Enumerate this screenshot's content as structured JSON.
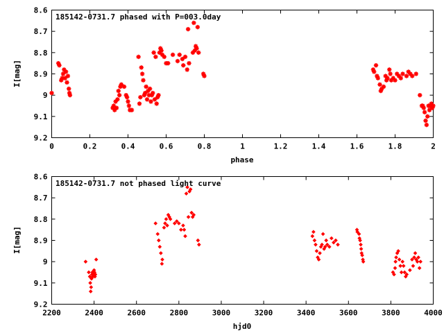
{
  "chart_data": [
    {
      "type": "scatter",
      "title": "185142-0731.7 phased with P=003.0day",
      "xlabel": "phase",
      "ylabel": "I[mag]",
      "xlim": [
        0,
        2
      ],
      "ylim": [
        9.2,
        8.6
      ],
      "y_inverted": true,
      "grid": false,
      "marker_color": "#ff0000",
      "marker": "star",
      "x_ticks": [
        "0",
        "0.2",
        "0.4",
        "0.6",
        "0.8",
        "1",
        "1.2",
        "1.4",
        "1.6",
        "1.8",
        "2"
      ],
      "x_tick_values": [
        0,
        0.2,
        0.4,
        0.6,
        0.8,
        1.0,
        1.2,
        1.4,
        1.6,
        1.8,
        2.0
      ],
      "y_ticks": [
        "8.6",
        "8.7",
        "8.8",
        "8.9",
        "9",
        "9.1",
        "9.2"
      ],
      "y_tick_values": [
        8.6,
        8.7,
        8.8,
        8.9,
        9.0,
        9.1,
        9.2
      ],
      "series": [
        {
          "points": [
            [
              0.0,
              8.99
            ],
            [
              0.035,
              8.85
            ],
            [
              0.04,
              8.86
            ],
            [
              0.05,
              8.93
            ],
            [
              0.055,
              8.92
            ],
            [
              0.06,
              8.9
            ],
            [
              0.065,
              8.88
            ],
            [
              0.07,
              8.92
            ],
            [
              0.075,
              8.89
            ],
            [
              0.08,
              8.94
            ],
            [
              0.085,
              8.91
            ],
            [
              0.09,
              8.97
            ],
            [
              0.093,
              8.99
            ],
            [
              0.096,
              9.0
            ],
            [
              0.32,
              9.06
            ],
            [
              0.325,
              9.05
            ],
            [
              0.33,
              9.07
            ],
            [
              0.335,
              9.03
            ],
            [
              0.34,
              9.06
            ],
            [
              0.345,
              9.02
            ],
            [
              0.35,
              8.98
            ],
            [
              0.355,
              9.0
            ],
            [
              0.36,
              8.96
            ],
            [
              0.365,
              8.95
            ],
            [
              0.38,
              8.96
            ],
            [
              0.39,
              9.0
            ],
            [
              0.395,
              9.01
            ],
            [
              0.4,
              9.03
            ],
            [
              0.405,
              9.05
            ],
            [
              0.41,
              9.07
            ],
            [
              0.42,
              9.07
            ],
            [
              0.455,
              8.82
            ],
            [
              0.46,
              9.04
            ],
            [
              0.465,
              9.01
            ],
            [
              0.47,
              8.87
            ],
            [
              0.475,
              8.9
            ],
            [
              0.48,
              8.93
            ],
            [
              0.485,
              9.0
            ],
            [
              0.49,
              8.99
            ],
            [
              0.495,
              8.96
            ],
            [
              0.5,
              9.02
            ],
            [
              0.505,
              8.98
            ],
            [
              0.51,
              9.0
            ],
            [
              0.515,
              8.97
            ],
            [
              0.52,
              9.03
            ],
            [
              0.525,
              9.0
            ],
            [
              0.53,
              8.99
            ],
            [
              0.535,
              8.8
            ],
            [
              0.54,
              9.02
            ],
            [
              0.545,
              8.82
            ],
            [
              0.55,
              9.04
            ],
            [
              0.555,
              9.01
            ],
            [
              0.56,
              9.0
            ],
            [
              0.565,
              8.8
            ],
            [
              0.57,
              8.78
            ],
            [
              0.575,
              8.79
            ],
            [
              0.58,
              8.81
            ],
            [
              0.59,
              8.82
            ],
            [
              0.6,
              8.85
            ],
            [
              0.61,
              8.85
            ],
            [
              0.635,
              8.81
            ],
            [
              0.66,
              8.84
            ],
            [
              0.67,
              8.81
            ],
            [
              0.685,
              8.83
            ],
            [
              0.69,
              8.86
            ],
            [
              0.7,
              8.82
            ],
            [
              0.71,
              8.88
            ],
            [
              0.715,
              8.69
            ],
            [
              0.72,
              8.85
            ],
            [
              0.74,
              8.8
            ],
            [
              0.745,
              8.66
            ],
            [
              0.75,
              8.79
            ],
            [
              0.755,
              8.77
            ],
            [
              0.76,
              8.78
            ],
            [
              0.765,
              8.68
            ],
            [
              0.77,
              8.8
            ],
            [
              0.795,
              8.9
            ],
            [
              0.8,
              8.91
            ],
            [
              1.685,
              8.88
            ],
            [
              1.69,
              8.89
            ],
            [
              1.7,
              8.86
            ],
            [
              1.705,
              8.91
            ],
            [
              1.71,
              8.92
            ],
            [
              1.72,
              8.95
            ],
            [
              1.725,
              8.98
            ],
            [
              1.73,
              8.97
            ],
            [
              1.74,
              8.96
            ],
            [
              1.75,
              8.91
            ],
            [
              1.755,
              8.93
            ],
            [
              1.76,
              8.92
            ],
            [
              1.77,
              8.88
            ],
            [
              1.775,
              8.9
            ],
            [
              1.78,
              8.93
            ],
            [
              1.79,
              8.92
            ],
            [
              1.8,
              8.93
            ],
            [
              1.81,
              8.9
            ],
            [
              1.82,
              8.91
            ],
            [
              1.83,
              8.92
            ],
            [
              1.84,
              8.9
            ],
            [
              1.86,
              8.91
            ],
            [
              1.87,
              8.89
            ],
            [
              1.88,
              8.9
            ],
            [
              1.89,
              8.91
            ],
            [
              1.91,
              8.9
            ],
            [
              1.93,
              9.0
            ],
            [
              1.94,
              9.05
            ],
            [
              1.945,
              9.05
            ],
            [
              1.95,
              9.06
            ],
            [
              1.955,
              9.08
            ],
            [
              1.96,
              9.12
            ],
            [
              1.965,
              9.14
            ],
            [
              1.97,
              9.1
            ],
            [
              1.975,
              9.05
            ],
            [
              1.98,
              9.07
            ],
            [
              1.985,
              9.05
            ],
            [
              1.99,
              9.04
            ],
            [
              1.995,
              9.06
            ],
            [
              2.0,
              9.05
            ]
          ]
        }
      ]
    },
    {
      "type": "scatter",
      "title": "185142-0731.7 not phased light curve",
      "xlabel": "hjd0",
      "ylabel": "I[mag]",
      "xlim": [
        2200,
        4000
      ],
      "ylim": [
        9.2,
        8.6
      ],
      "y_inverted": true,
      "grid": false,
      "marker_color": "#ff0000",
      "marker": "diamond",
      "x_ticks": [
        "2200",
        "2400",
        "2600",
        "2800",
        "3000",
        "3200",
        "3400",
        "3600",
        "3800",
        "4000"
      ],
      "x_tick_values": [
        2200,
        2400,
        2600,
        2800,
        3000,
        3200,
        3400,
        3600,
        3800,
        4000
      ],
      "y_ticks": [
        "8.6",
        "8.7",
        "8.8",
        "8.9",
        "9",
        "9.1",
        "9.2"
      ],
      "y_tick_values": [
        8.6,
        8.7,
        8.8,
        8.9,
        9.0,
        9.1,
        9.2
      ],
      "series": [
        {
          "points": [
            [
              2360,
              9.0
            ],
            [
              2375,
              9.05
            ],
            [
              2380,
              9.07
            ],
            [
              2382,
              9.1
            ],
            [
              2384,
              9.14
            ],
            [
              2386,
              9.12
            ],
            [
              2388,
              9.08
            ],
            [
              2390,
              9.06
            ],
            [
              2392,
              9.05
            ],
            [
              2395,
              9.07
            ],
            [
              2398,
              9.06
            ],
            [
              2400,
              9.04
            ],
            [
              2402,
              9.05
            ],
            [
              2404,
              9.07
            ],
            [
              2406,
              9.06
            ],
            [
              2410,
              8.99
            ],
            [
              2690,
              8.82
            ],
            [
              2700,
              8.87
            ],
            [
              2705,
              8.9
            ],
            [
              2710,
              8.93
            ],
            [
              2715,
              8.96
            ],
            [
              2720,
              9.01
            ],
            [
              2722,
              8.99
            ],
            [
              2730,
              8.84
            ],
            [
              2735,
              8.82
            ],
            [
              2740,
              8.8
            ],
            [
              2745,
              8.83
            ],
            [
              2750,
              8.78
            ],
            [
              2755,
              8.79
            ],
            [
              2760,
              8.8
            ],
            [
              2780,
              8.82
            ],
            [
              2790,
              8.81
            ],
            [
              2800,
              8.82
            ],
            [
              2810,
              8.85
            ],
            [
              2820,
              8.83
            ],
            [
              2825,
              8.85
            ],
            [
              2830,
              8.88
            ],
            [
              2835,
              8.68
            ],
            [
              2840,
              8.65
            ],
            [
              2845,
              8.79
            ],
            [
              2850,
              8.67
            ],
            [
              2855,
              8.66
            ],
            [
              2860,
              8.77
            ],
            [
              2865,
              8.79
            ],
            [
              2870,
              8.78
            ],
            [
              2890,
              8.9
            ],
            [
              2895,
              8.92
            ],
            [
              3430,
              8.88
            ],
            [
              3435,
              8.86
            ],
            [
              3440,
              8.9
            ],
            [
              3445,
              8.92
            ],
            [
              3450,
              8.95
            ],
            [
              3455,
              8.98
            ],
            [
              3460,
              8.99
            ],
            [
              3465,
              8.96
            ],
            [
              3470,
              8.93
            ],
            [
              3475,
              8.92
            ],
            [
              3480,
              8.87
            ],
            [
              3485,
              8.94
            ],
            [
              3490,
              8.93
            ],
            [
              3495,
              8.9
            ],
            [
              3500,
              8.92
            ],
            [
              3510,
              8.93
            ],
            [
              3520,
              8.89
            ],
            [
              3530,
              8.91
            ],
            [
              3540,
              8.9
            ],
            [
              3550,
              8.92
            ],
            [
              3640,
              8.85
            ],
            [
              3642,
              8.86
            ],
            [
              3650,
              8.87
            ],
            [
              3652,
              8.89
            ],
            [
              3655,
              8.9
            ],
            [
              3658,
              8.92
            ],
            [
              3660,
              8.94
            ],
            [
              3662,
              8.96
            ],
            [
              3665,
              8.97
            ],
            [
              3668,
              8.99
            ],
            [
              3670,
              9.0
            ],
            [
              3810,
              9.05
            ],
            [
              3815,
              9.06
            ],
            [
              3820,
              9.03
            ],
            [
              3822,
              9.0
            ],
            [
              3825,
              8.98
            ],
            [
              3830,
              8.96
            ],
            [
              3835,
              8.95
            ],
            [
              3840,
              8.99
            ],
            [
              3845,
              9.02
            ],
            [
              3850,
              9.05
            ],
            [
              3855,
              9.0
            ],
            [
              3860,
              9.02
            ],
            [
              3865,
              9.05
            ],
            [
              3870,
              9.07
            ],
            [
              3875,
              9.06
            ],
            [
              3890,
              9.04
            ],
            [
              3900,
              8.99
            ],
            [
              3905,
              9.02
            ],
            [
              3910,
              8.98
            ],
            [
              3915,
              8.96
            ],
            [
              3920,
              8.99
            ],
            [
              3925,
              9.0
            ],
            [
              3930,
              8.98
            ],
            [
              3935,
              9.03
            ],
            [
              3940,
              9.0
            ]
          ]
        }
      ]
    }
  ]
}
